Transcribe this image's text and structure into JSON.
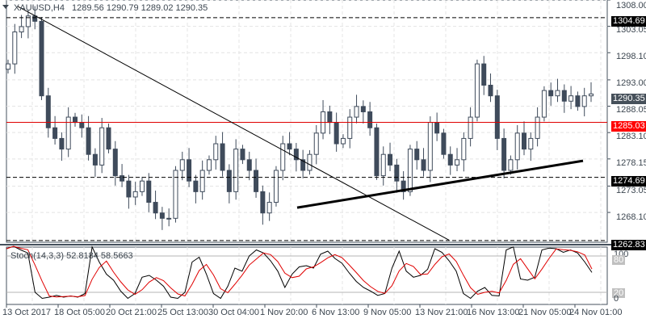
{
  "header": {
    "symbol": "XAUUSD,H4",
    "ohlc": "1289.56 1290.79 1289.02 1290.35"
  },
  "price_axis": {
    "ticks": [
      "1308.00",
      "1303.05",
      "1298.10",
      "1293.00",
      "1288.05",
      "1283.10",
      "1278.15",
      "1273.05",
      "1268.10"
    ],
    "current_price": "1290.35",
    "level_1304": "1304.69",
    "level_1285": "1285.03",
    "level_1274": "1274.69",
    "level_1262": "1262.83"
  },
  "indicator": {
    "title": "Stoch(14,3,3) 52.8184 58.5663",
    "axis": {
      "top": "100",
      "upper": "80",
      "lower": "20",
      "bottom": "0"
    }
  },
  "time_axis": [
    "13 Oct 2017",
    "18 Oct 05:00",
    "20 Oct 21:00",
    "25 Oct 13:00",
    "30 Oct 04:00",
    "1 Nov 20:00",
    "6 Nov 13:00",
    "9 Nov 05:00",
    "13 Nov 21:00",
    "16 Nov 13:00",
    "21 Nov 05:00",
    "24 Nov 01:00"
  ],
  "colors": {
    "candle": "#3f4b5b",
    "resistance": "#e00000",
    "current_tag": "#46505a",
    "stoch_main": "#000000",
    "stoch_signal": "#e00000"
  },
  "chart_data": {
    "type": "candlestick",
    "title": "XAUUSD,H4",
    "instrument": "XAUUSD",
    "timeframe": "H4",
    "last_ohlc": {
      "open": 1289.56,
      "high": 1290.79,
      "low": 1289.02,
      "close": 1290.35
    },
    "ylim": [
      1262.5,
      1308.0
    ],
    "x_tick_labels": [
      "13 Oct 2017",
      "18 Oct 05:00",
      "20 Oct 21:00",
      "25 Oct 13:00",
      "30 Oct 04:00",
      "1 Nov 20:00",
      "6 Nov 13:00",
      "9 Nov 05:00",
      "13 Nov 21:00",
      "16 Nov 13:00",
      "21 Nov 05:00",
      "24 Nov 01:00"
    ],
    "y_tick_labels": [
      "1308.00",
      "1303.05",
      "1298.10",
      "1293.00",
      "1288.05",
      "1283.10",
      "1278.15",
      "1273.05",
      "1268.10"
    ],
    "horizontal_levels": [
      {
        "value": 1304.69,
        "style": "dashed",
        "color": "#000000"
      },
      {
        "value": 1285.03,
        "style": "solid",
        "color": "#e00000"
      },
      {
        "value": 1274.69,
        "style": "dashed",
        "color": "#000000"
      },
      {
        "value": 1262.83,
        "style": "dashed",
        "color": "#000000"
      }
    ],
    "trendlines": [
      {
        "name": "descending",
        "from": [
          22,
          1306.8
        ],
        "to": [
          556,
          1262.9
        ],
        "width": 1
      },
      {
        "name": "ascending support",
        "from": [
          368,
          1269.0
        ],
        "to": [
          722,
          1277.8
        ],
        "width": 3
      }
    ],
    "close_path_approx": [
      1296,
      1302,
      1303,
      1305,
      1304,
      1290,
      1284,
      1282,
      1280,
      1286,
      1285,
      1284,
      1279,
      1277,
      1284,
      1280,
      1275,
      1274,
      1271,
      1272,
      1274,
      1270,
      1268,
      1267,
      1267,
      1276,
      1278,
      1274,
      1272,
      1276,
      1278,
      1281,
      1276,
      1272,
      1280,
      1278,
      1276,
      1272,
      1268,
      1270,
      1276,
      1281,
      1280,
      1278,
      1276,
      1279,
      1283,
      1287,
      1285,
      1281,
      1282,
      1286,
      1288,
      1287,
      1284,
      1275,
      1279,
      1277,
      1274,
      1272,
      1280,
      1278,
      1276,
      1285,
      1283,
      1279,
      1277,
      1278,
      1282,
      1286,
      1296,
      1292,
      1290,
      1282,
      1276,
      1278,
      1283,
      1280,
      1282,
      1286,
      1291,
      1290,
      1291,
      1289,
      1290,
      1288,
      1290,
      1290.35
    ],
    "indicator": {
      "name": "Stoch(14,3,3)",
      "main": 52.8184,
      "signal": 58.5663,
      "ylim": [
        0,
        100
      ],
      "levels": [
        20,
        80
      ]
    }
  }
}
